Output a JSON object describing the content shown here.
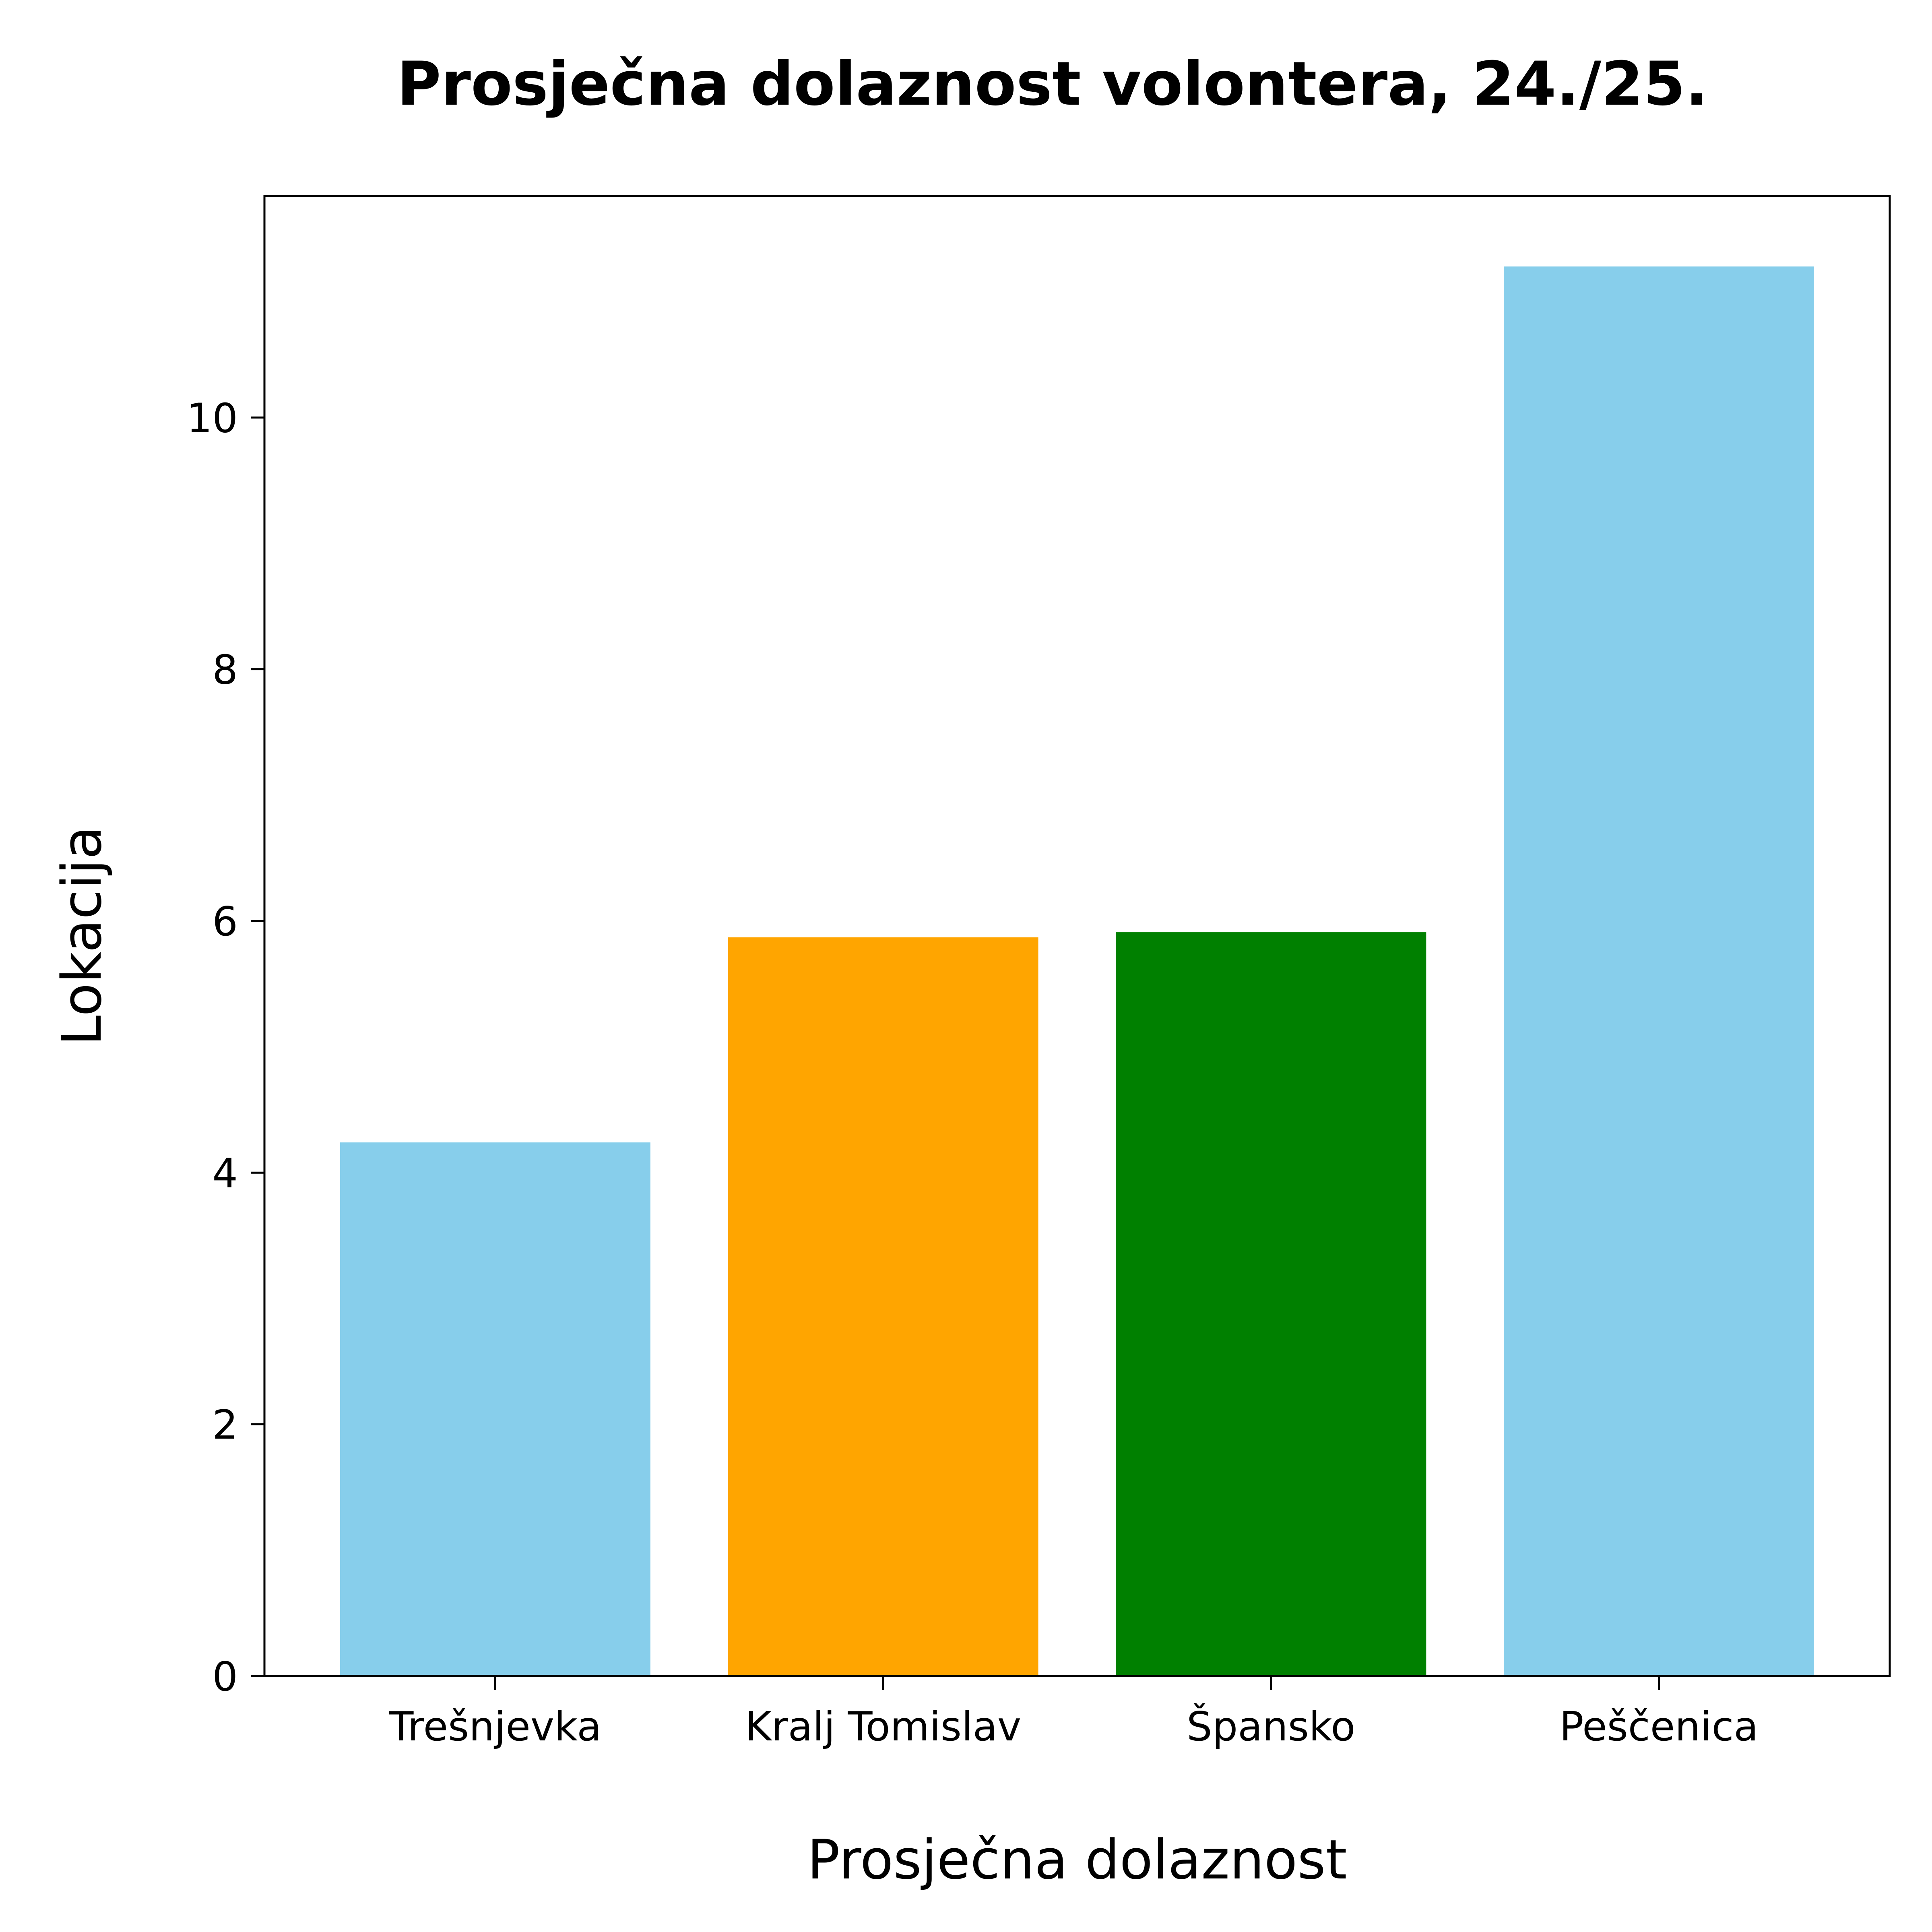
{
  "chart_data": {
    "type": "bar",
    "title": "Prosječna dolaznost volontera, 24./25.",
    "xlabel": "Prosječna dolaznost",
    "ylabel": "Lokacija",
    "categories": [
      "Trešnjevka",
      "Kralj Tomislav",
      "Špansko",
      "Peščenica"
    ],
    "values": [
      4.24,
      5.87,
      5.91,
      11.2
    ],
    "colors": [
      "#87CEEB",
      "#FFA500",
      "#008000",
      "#87CEEB"
    ],
    "ylim": [
      0,
      11.76
    ],
    "yticks": [
      0,
      2,
      4,
      6,
      8,
      10
    ],
    "grid": false,
    "legend": "none"
  }
}
